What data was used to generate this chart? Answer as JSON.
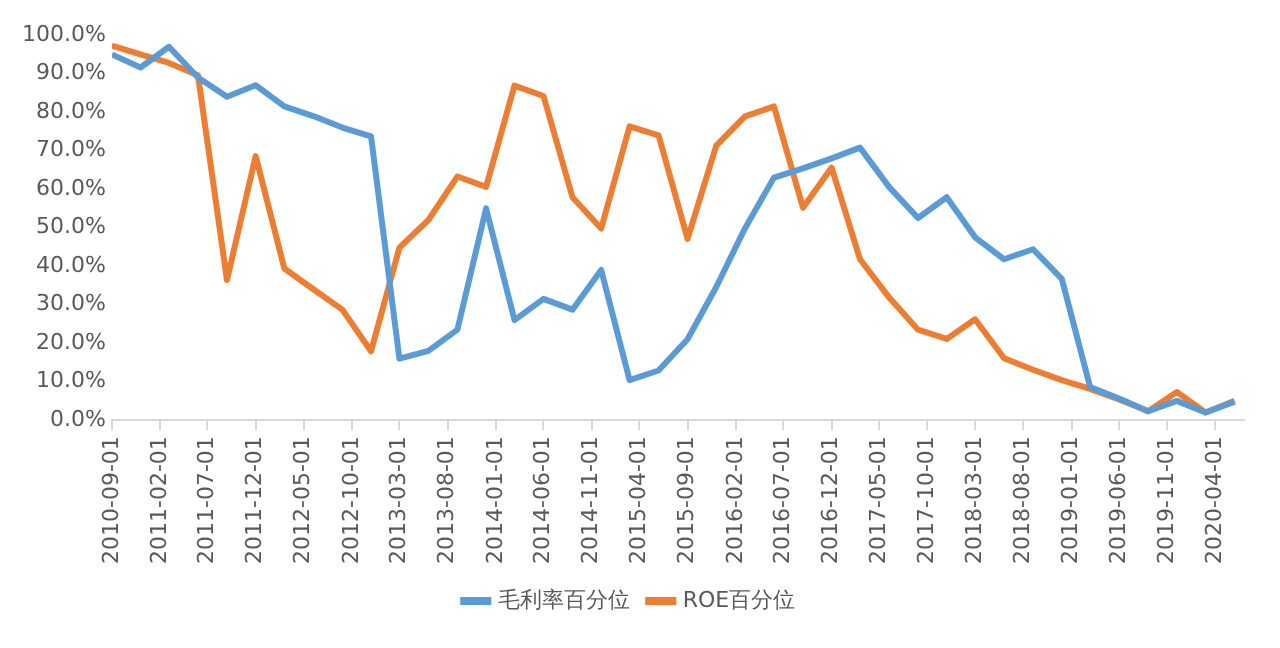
{
  "chart_data": {
    "type": "line",
    "x": [
      "2010-09-01",
      "2010-12-01",
      "2011-03-01",
      "2011-06-01",
      "2011-09-01",
      "2011-12-01",
      "2012-03-01",
      "2012-06-01",
      "2012-09-01",
      "2012-12-01",
      "2013-03-01",
      "2013-06-01",
      "2013-09-01",
      "2013-12-01",
      "2014-03-01",
      "2014-06-01",
      "2014-09-01",
      "2014-12-01",
      "2015-03-01",
      "2015-06-01",
      "2015-09-01",
      "2015-12-01",
      "2016-03-01",
      "2016-06-01",
      "2016-09-01",
      "2016-12-01",
      "2017-03-01",
      "2017-06-01",
      "2017-09-01",
      "2017-12-01",
      "2018-03-01",
      "2018-06-01",
      "2018-09-01",
      "2018-12-01",
      "2019-03-01",
      "2019-06-01",
      "2019-09-01",
      "2019-12-01",
      "2020-03-01",
      "2020-06-01"
    ],
    "series": [
      {
        "name": "毛利率百分位",
        "color": "#5b9bd5",
        "values": [
          95,
          91.6,
          97,
          89,
          84,
          87,
          81.5,
          79,
          76,
          73.7,
          16,
          18,
          23.5,
          55,
          26,
          31.5,
          28.7,
          39,
          10.4,
          12.9,
          21,
          34.6,
          49.8,
          63,
          65.4,
          68,
          70.8,
          60.6,
          52.5,
          57.9,
          47.5,
          41.8,
          44.4,
          36.7,
          8.6,
          5.6,
          2.3,
          5,
          2,
          4.8
        ]
      },
      {
        "name": "ROE百分位",
        "color": "#ed7d31",
        "values": [
          97.3,
          95,
          92.8,
          89.6,
          36.4,
          68.6,
          39.4,
          34,
          28.7,
          17.9,
          44.8,
          52,
          63.3,
          60.6,
          86.9,
          84.2,
          57.9,
          49.8,
          76.3,
          74,
          47.1,
          71.3,
          78.9,
          81.5,
          55.2,
          65.6,
          41.8,
          31.9,
          23.5,
          21.1,
          26.2,
          16.1,
          13.1,
          10.4,
          8.1,
          5.4,
          2.3,
          7.3,
          2,
          5
        ]
      }
    ],
    "xlim": [
      "2010-09-01",
      "2020-07-01"
    ],
    "xticks": [
      "2010-09-01",
      "2011-02-01",
      "2011-07-01",
      "2011-12-01",
      "2012-05-01",
      "2012-10-01",
      "2013-03-01",
      "2013-08-01",
      "2014-01-01",
      "2014-06-01",
      "2014-11-01",
      "2015-04-01",
      "2015-09-01",
      "2016-02-01",
      "2016-07-01",
      "2016-12-01",
      "2017-05-01",
      "2017-10-01",
      "2018-03-01",
      "2018-08-01",
      "2019-01-01",
      "2019-06-01",
      "2019-11-01",
      "2020-04-01"
    ],
    "ylim": [
      0,
      100
    ],
    "yticks": [
      {
        "value": 0,
        "label": "0.0%"
      },
      {
        "value": 10,
        "label": "10.0%"
      },
      {
        "value": 20,
        "label": "20.0%"
      },
      {
        "value": 30,
        "label": "30.0%"
      },
      {
        "value": 40,
        "label": "40.0%"
      },
      {
        "value": 50,
        "label": "50.0%"
      },
      {
        "value": 60,
        "label": "60.0%"
      },
      {
        "value": 70,
        "label": "70.0%"
      },
      {
        "value": 80,
        "label": "80.0%"
      },
      {
        "value": 90,
        "label": "90.0%"
      },
      {
        "value": 100,
        "label": "100.0%"
      }
    ],
    "grid": false,
    "legend": "bottom",
    "marker": "none",
    "line_style": "solid"
  }
}
